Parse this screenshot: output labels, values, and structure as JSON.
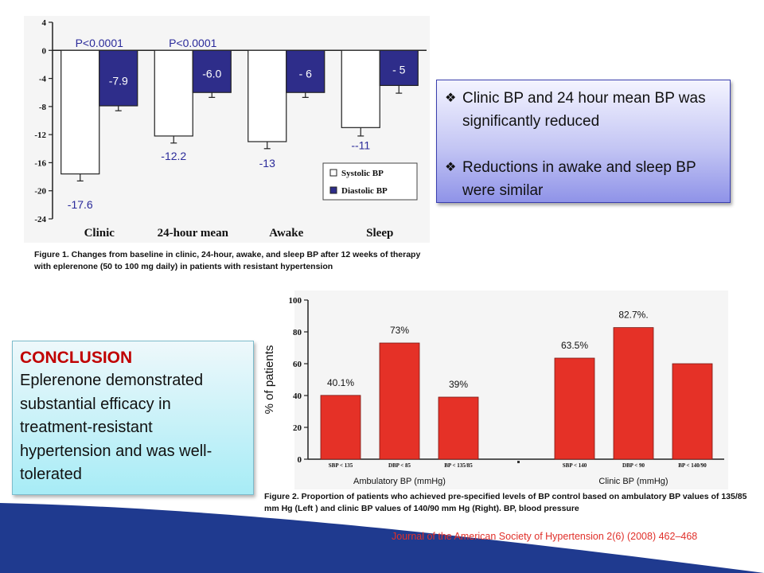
{
  "slide": {
    "figure1_caption": "Figure 1. Changes from baseline in clinic, 24-hour, awake, and  sleep BP after 12 weeks of therapy with eplerenone (50 to 100 mg daily) in patients with resistant hypertension",
    "figure2_caption": "Figure 2. Proportion of patients who achieved pre-specified  levels of BP control based on ambulatory BP values of 135/85 mm Hg (Left ) and clinic BP values of 140/90 mm Hg (Right). BP, blood pressure",
    "bullets": [
      "Clinic BP and  24 hour mean BP was significantly reduced",
      "Reductions in awake and sleep BP were similar"
    ],
    "bullet_marker": "❖",
    "conclusion_title": "CONCLUSION",
    "conclusion_text": "Eplerenone demonstrated substantial efficacy in treatment-resistant hypertension and was well-tolerated",
    "journal_reference": "Journal of the American Society of Hypertension 2(6) (2008) 462–468",
    "colors": {
      "systolic_fill": "#ffffff",
      "diastolic_fill": "#2e2d8a",
      "value_label": "#2a2a9a",
      "red_bar": "#e53127",
      "conclusion_title": "#c00000",
      "journal": "#e0302a",
      "wave": "#1f3a8f"
    }
  },
  "chart_data": [
    {
      "type": "bar",
      "categories": [
        "Clinic",
        "24-hour mean",
        "Awake",
        "Sleep"
      ],
      "series": [
        {
          "name": "Systolic BP",
          "values": [
            -17.6,
            -12.2,
            -13,
            -11
          ]
        },
        {
          "name": "Diastolic BP",
          "values": [
            -7.9,
            -6.0,
            -6,
            -5
          ]
        }
      ],
      "data_labels": {
        "Systolic BP": [
          "-17.6",
          "-12.2",
          "-13",
          "--11"
        ],
        "Diastolic BP": [
          "-7.9",
          "-6.0",
          "- 6",
          "- 5"
        ]
      },
      "errors": {
        "Systolic BP": [
          1.0,
          1.0,
          1.0,
          1.2
        ],
        "Diastolic BP": [
          0.7,
          0.7,
          0.7,
          1.1
        ]
      },
      "annotations": [
        {
          "category": "Clinic",
          "text": "P<0.0001"
        },
        {
          "category": "24-hour mean",
          "text": "P<0.0001"
        }
      ],
      "ylim": [
        -24,
        4
      ],
      "yticks": [
        4,
        0,
        -4,
        -8,
        -12,
        -16,
        -20,
        -24
      ],
      "legend": "bottom-right",
      "grid": false
    },
    {
      "type": "bar",
      "groups": [
        {
          "label": "Ambulatory  BP  (mmHg)",
          "categories": [
            "SBP < 135",
            "DBP < 85",
            "BP < 135/85"
          ],
          "values": [
            40.1,
            73,
            39
          ],
          "data_labels": [
            "40.1%",
            "73%",
            "39%"
          ]
        },
        {
          "label": "Clinic  BP  (mmHg)",
          "categories": [
            "SBP < 140",
            "DBP < 90",
            "BP < 140/90"
          ],
          "values": [
            63.5,
            82.7,
            60
          ],
          "data_labels": [
            "63.5%",
            "82.7%.",
            ""
          ]
        }
      ],
      "ylabel": "% of patients",
      "ylim": [
        0,
        100
      ],
      "yticks": [
        0,
        20,
        40,
        60,
        80,
        100
      ],
      "grid": false
    }
  ]
}
